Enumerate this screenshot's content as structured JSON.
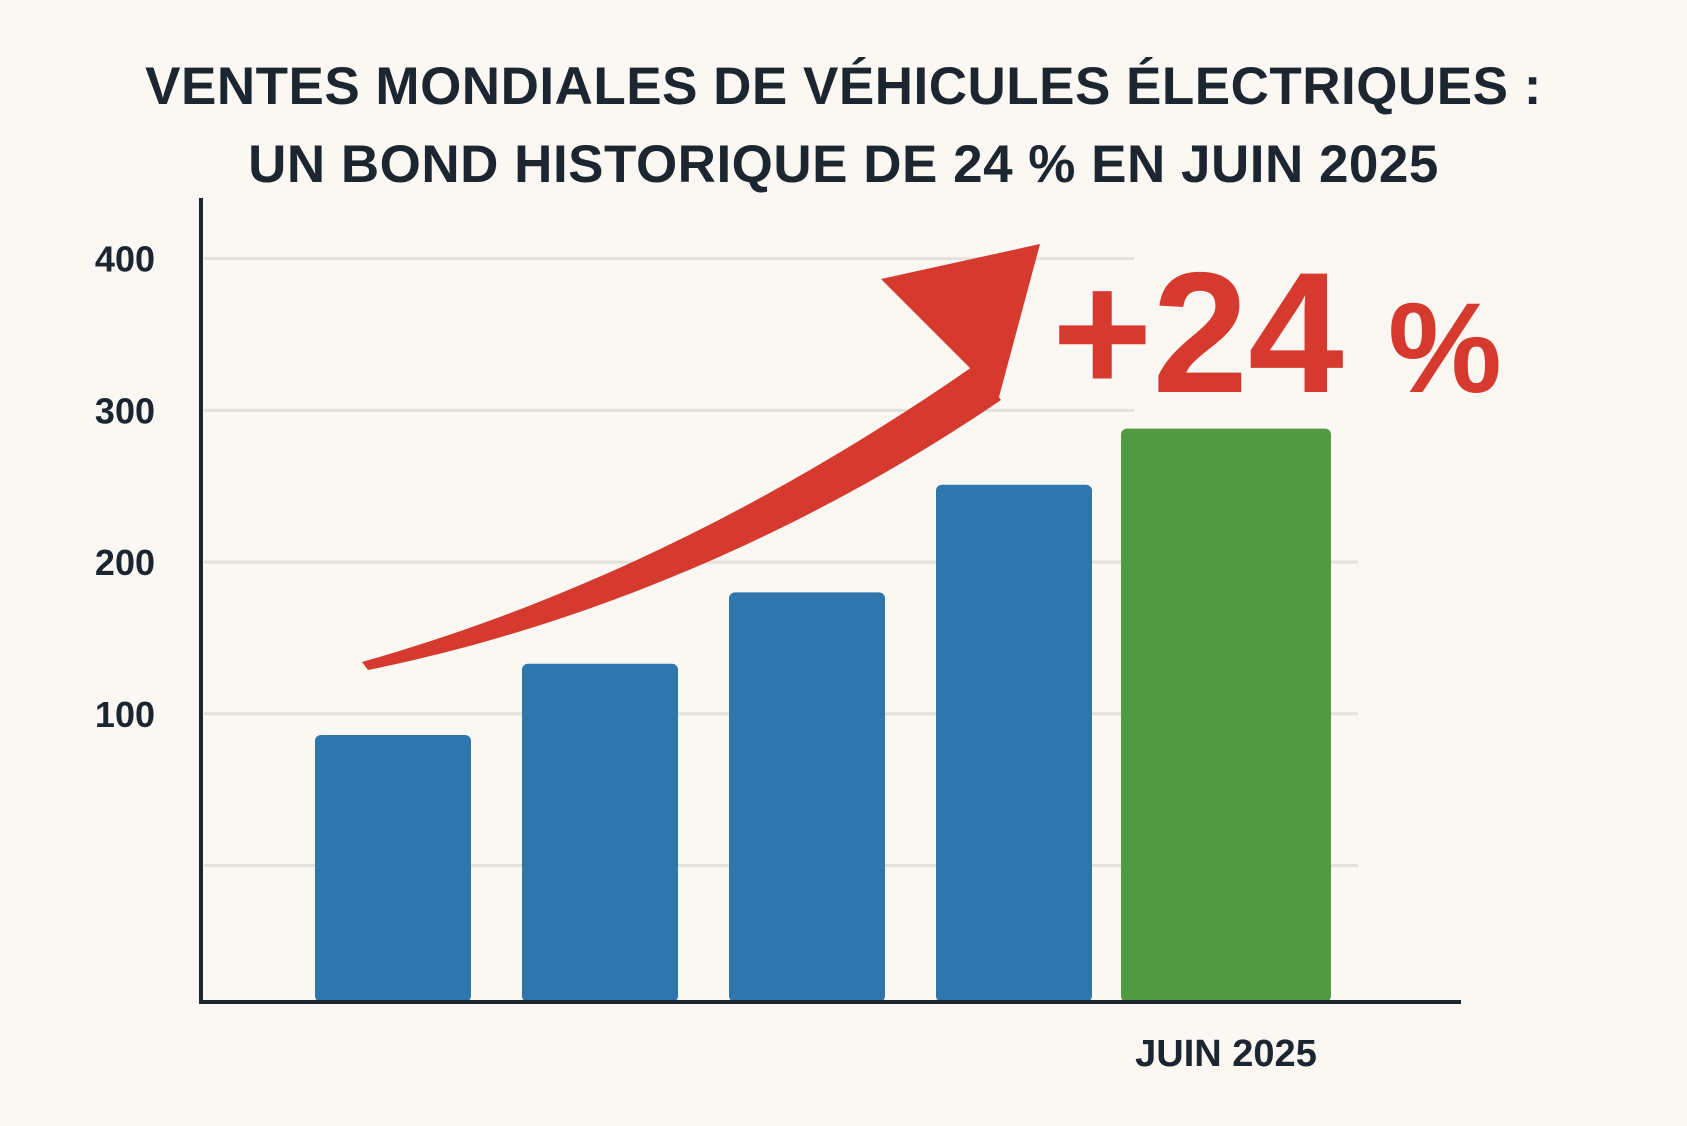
{
  "chart_data": {
    "type": "bar",
    "title_lines": [
      "VENTES MONDIALES DE VÉHICULES ÉLECTRIQUES :",
      "UN BOND HISTORIQUE DE 24 % EN JUIN 2025"
    ],
    "categories": [
      "",
      "",
      "",
      "",
      "JUIN 2025"
    ],
    "values": [
      86,
      133,
      180,
      251,
      288
    ],
    "bar_colors": [
      "#2f76ad",
      "#2f76ad",
      "#2f76ad",
      "#2f76ad",
      "#529a41"
    ],
    "ylim": [
      -90,
      440
    ],
    "yticks": [
      0,
      100,
      200,
      300,
      400
    ],
    "ytick_labels": [
      "",
      "100",
      "200",
      "300",
      "400"
    ],
    "grid": true,
    "annotation": {
      "text_plus": "+24",
      "text_pct": "%",
      "color": "#d63a2f",
      "arrow_direction": "up-right"
    },
    "xlabel": "",
    "ylabel": ""
  }
}
